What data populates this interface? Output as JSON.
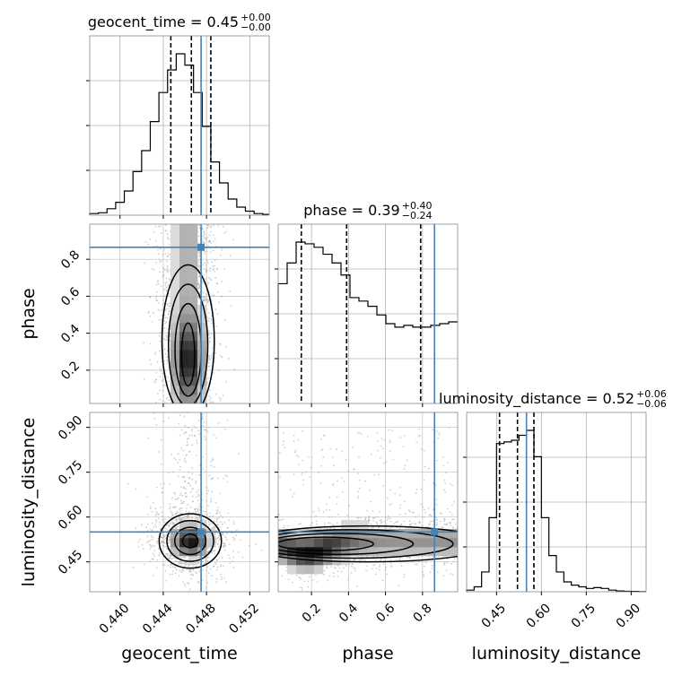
{
  "chart_data": {
    "type": "corner",
    "parameters": [
      "geocent_time",
      "phase",
      "luminosity_distance"
    ],
    "titles": [
      {
        "param": "geocent_time",
        "label": "geocent_time = 0.45",
        "plus": "+0.00",
        "minus": "−0.00"
      },
      {
        "param": "phase",
        "label": "phase = 0.39",
        "plus": "+0.40",
        "minus": "−0.24"
      },
      {
        "param": "luminosity_distance",
        "label": "luminosity_distance = 0.52",
        "plus": "+0.06",
        "minus": "−0.06"
      }
    ],
    "axis_labels": {
      "x": [
        "geocent_time",
        "phase",
        "luminosity_distance"
      ],
      "y": [
        "phase",
        "luminosity_distance"
      ]
    },
    "ranges": {
      "geocent_time": [
        0.4372,
        0.4538
      ],
      "phase": [
        0.02,
        0.99
      ],
      "luminosity_distance": [
        0.35,
        0.95
      ]
    },
    "ticks": {
      "geocent_time": [
        "0.440",
        "0.444",
        "0.448",
        "0.452"
      ],
      "phase": [
        "0.2",
        "0.4",
        "0.6",
        "0.8"
      ],
      "luminosity_distance": [
        "0.45",
        "0.60",
        "0.75",
        "0.90"
      ]
    },
    "tick_values": {
      "geocent_time": [
        0.44,
        0.444,
        0.448,
        0.452
      ],
      "phase": [
        0.2,
        0.4,
        0.6,
        0.8
      ],
      "luminosity_distance": [
        0.45,
        0.6,
        0.75,
        0.9
      ]
    },
    "truths": {
      "geocent_time": 0.4475,
      "phase": 0.865,
      "luminosity_distance": 0.55
    },
    "quantiles": {
      "geocent_time": [
        0.4447,
        0.4466,
        0.4484
      ],
      "phase": [
        0.145,
        0.39,
        0.79
      ],
      "luminosity_distance": [
        0.46,
        0.52,
        0.575
      ]
    },
    "histograms": {
      "geocent_time": {
        "edges_start": 0.4372,
        "bin_width": 0.0008,
        "counts": [
          0.01,
          0.015,
          0.04,
          0.08,
          0.15,
          0.27,
          0.4,
          0.58,
          0.76,
          0.9,
          1.0,
          0.93,
          0.76,
          0.55,
          0.33,
          0.2,
          0.1,
          0.05,
          0.025,
          0.01,
          0.005
        ]
      },
      "phase": {
        "edges_start": 0.02,
        "bin_width": 0.0485,
        "counts": [
          0.69,
          0.81,
          0.93,
          0.92,
          0.9,
          0.86,
          0.81,
          0.74,
          0.61,
          0.59,
          0.56,
          0.51,
          0.46,
          0.44,
          0.45,
          0.44,
          0.44,
          0.45,
          0.46,
          0.47
        ]
      },
      "luminosity_distance": {
        "edges_start": 0.35,
        "bin_width": 0.025,
        "counts": [
          0.01,
          0.03,
          0.12,
          0.45,
          0.9,
          0.91,
          0.92,
          0.95,
          0.98,
          0.82,
          0.45,
          0.22,
          0.12,
          0.06,
          0.04,
          0.03,
          0.02,
          0.025,
          0.02,
          0.01,
          0.005,
          0.003,
          0.002,
          0.001
        ]
      }
    },
    "joint_2d": [
      {
        "x": "geocent_time",
        "y": "phase",
        "center": [
          0.4463,
          0.26
        ],
        "spread": [
          0.0011,
          0.14
        ],
        "tail_y": [
          0.26,
          0.98
        ]
      },
      {
        "x": "geocent_time",
        "y": "luminosity_distance",
        "center": [
          0.4465,
          0.52
        ],
        "spread": [
          0.0012,
          0.035
        ],
        "tail_y": [
          0.52,
          0.95
        ]
      },
      {
        "x": "phase",
        "y": "luminosity_distance",
        "center": [
          0.17,
          0.49
        ],
        "spread": [
          0.12,
          0.04
        ],
        "tail_y": [
          0.49,
          0.6
        ]
      }
    ],
    "grid": true,
    "colors": {
      "truth": "#4682b4",
      "hist": "#000000",
      "density": "#000000",
      "points": "#b0b0b0"
    }
  }
}
